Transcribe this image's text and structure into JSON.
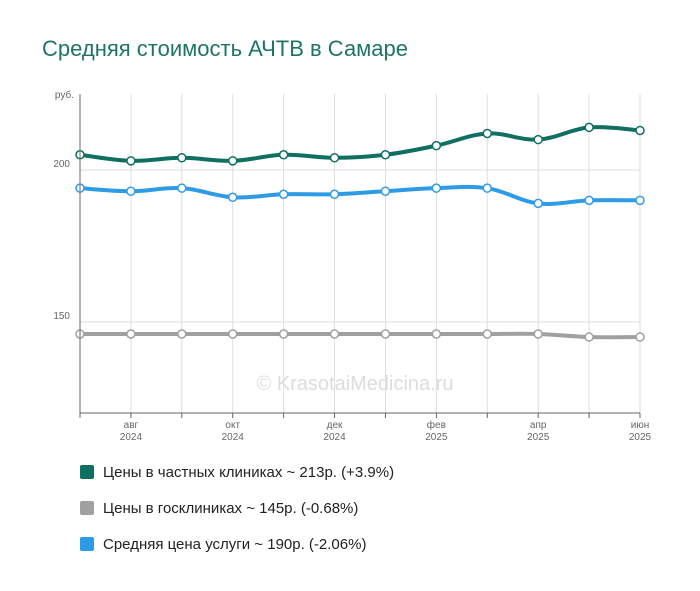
{
  "chart_data": {
    "type": "line",
    "title": "Средняя стоимость АЧТВ в Самаре",
    "ylabel": "руб.",
    "ylim": [
      120,
      225
    ],
    "y_ticks": [
      150,
      200
    ],
    "x_points": [
      "2024-07",
      "2024-08",
      "2024-09",
      "2024-10",
      "2024-11",
      "2024-12",
      "2025-01",
      "2025-02",
      "2025-03",
      "2025-04",
      "2025-05",
      "2025-06"
    ],
    "x_tick_labels": [
      {
        "index": 1,
        "month": "авг",
        "year": "2024"
      },
      {
        "index": 3,
        "month": "окт",
        "year": "2024"
      },
      {
        "index": 5,
        "month": "дек",
        "year": "2024"
      },
      {
        "index": 7,
        "month": "фев",
        "year": "2025"
      },
      {
        "index": 9,
        "month": "апр",
        "year": "2025"
      },
      {
        "index": 11,
        "month": "июн",
        "year": "2025"
      }
    ],
    "grid": true,
    "legend_position": "bottom",
    "watermark": "© KrasotaiMedicina.ru",
    "series": [
      {
        "name": "Цены в частных клиниках",
        "color": "#0e6f62",
        "values": [
          205,
          203,
          204,
          203,
          205,
          204,
          205,
          208,
          212,
          210,
          214,
          213
        ]
      },
      {
        "name": "Цены в госклиниках",
        "color": "#a0a0a0",
        "values": [
          146,
          146,
          146,
          146,
          146,
          146,
          146,
          146,
          146,
          146,
          145,
          145
        ]
      },
      {
        "name": "Средняя цена услуги",
        "color": "#2e9be6",
        "values": [
          194,
          193,
          194,
          191,
          192,
          192,
          193,
          194,
          194,
          189,
          190,
          190
        ]
      }
    ]
  },
  "legend": [
    {
      "label": "Цены в частных клиниках ~ 213р. (+3.9%)",
      "color": "#0e6f62"
    },
    {
      "label": "Цены в госклиниках ~ 145р. (-0.68%)",
      "color": "#a0a0a0"
    },
    {
      "label": "Средняя цена услуги ~ 190р. (-2.06%)",
      "color": "#2e9be6"
    }
  ]
}
